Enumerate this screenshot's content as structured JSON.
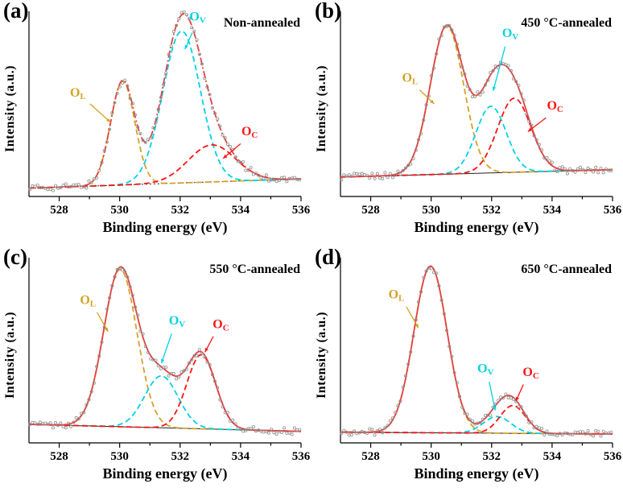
{
  "figure": {
    "background": "#ffffff",
    "axis_color": "#000000"
  },
  "chart_data": [
    {
      "type": "line",
      "panel_label": "(a)",
      "title": "Non-annealed",
      "xlabel": "Binding energy (eV)",
      "ylabel": "Intensity (a.u.)",
      "xlim": [
        527,
        536
      ],
      "ylim": [
        0,
        1
      ],
      "x_ticks": [
        528,
        530,
        532,
        534,
        536
      ],
      "raw": {
        "name": "raw data",
        "color": "#8f8f8f",
        "style": "scatter-open-circle"
      },
      "envelope": {
        "name": "fit envelope",
        "color": "#e4413f",
        "style": "dashdot"
      },
      "baseline": {
        "name": "background",
        "color": "#222222",
        "style": "dotted",
        "left": 0.045,
        "right": 0.095
      },
      "peaks": [
        {
          "name": "O_L",
          "text": "O",
          "sub": "L",
          "color": "#d6a125",
          "center": 530.1,
          "amplitude": 0.56,
          "sigma": 0.4,
          "label": {
            "x": 528.62,
            "y": 0.54
          },
          "arrow": {
            "x1": 529.02,
            "y1": 0.5,
            "x2": 529.7,
            "y2": 0.4
          }
        },
        {
          "name": "O_V",
          "text": "O",
          "sub": "V",
          "color": "#00d2e6",
          "center": 532.05,
          "amplitude": 0.82,
          "sigma": 0.62,
          "label": {
            "x": 532.58,
            "y": 0.95
          },
          "arrow": {
            "x1": 532.4,
            "y1": 0.885,
            "x2": 532.16,
            "y2": 0.795
          }
        },
        {
          "name": "O_C",
          "text": "O",
          "sub": "C",
          "color": "#fa1414",
          "center": 533.05,
          "amplitude": 0.2,
          "sigma": 0.78,
          "label": {
            "x": 534.3,
            "y": 0.33
          },
          "arrow": {
            "x1": 534.0,
            "y1": 0.285,
            "x2": 533.42,
            "y2": 0.205
          }
        }
      ]
    },
    {
      "type": "line",
      "panel_label": "(b)",
      "title": "450 °C-annealed",
      "xlabel": "Binding energy (eV)",
      "ylabel": "Intensity (a.u.)",
      "xlim": [
        527,
        536
      ],
      "ylim": [
        0,
        1
      ],
      "x_ticks": [
        528,
        530,
        532,
        534,
        536
      ],
      "raw": {
        "name": "raw data",
        "color": "#8f8f8f",
        "style": "scatter-open-circle"
      },
      "envelope": {
        "name": "fit envelope",
        "color": "#e4413f",
        "style": "solid"
      },
      "baseline": {
        "name": "background",
        "color": "#222222",
        "style": "solid",
        "left": 0.105,
        "right": 0.145
      },
      "peaks": [
        {
          "name": "O_L",
          "text": "O",
          "sub": "L",
          "color": "#d6a125",
          "center": 530.52,
          "amplitude": 0.8,
          "sigma": 0.55,
          "label": {
            "x": 529.3,
            "y": 0.62
          },
          "arrow": {
            "x1": 529.62,
            "y1": 0.575,
            "x2": 530.1,
            "y2": 0.5
          }
        },
        {
          "name": "O_V",
          "text": "O",
          "sub": "V",
          "color": "#00d2e6",
          "center": 531.98,
          "amplitude": 0.36,
          "sigma": 0.5,
          "label": {
            "x": 532.62,
            "y": 0.86
          },
          "arrow": {
            "x1": 532.45,
            "y1": 0.81,
            "x2": 532.05,
            "y2": 0.57
          }
        },
        {
          "name": "O_C",
          "text": "O",
          "sub": "C",
          "color": "#fa1414",
          "center": 532.75,
          "amplitude": 0.4,
          "sigma": 0.55,
          "label": {
            "x": 534.1,
            "y": 0.47
          },
          "arrow": {
            "x1": 533.8,
            "y1": 0.425,
            "x2": 533.2,
            "y2": 0.35
          }
        }
      ]
    },
    {
      "type": "line",
      "panel_label": "(c)",
      "title": "550 °C-annealed",
      "xlabel": "Binding energy (eV)",
      "ylabel": "Intensity (a.u.)",
      "xlim": [
        527,
        536
      ],
      "ylim": [
        0,
        1
      ],
      "x_ticks": [
        528,
        530,
        532,
        534,
        536
      ],
      "raw": {
        "name": "raw data",
        "color": "#8f8f8f",
        "style": "scatter-open-circle"
      },
      "envelope": {
        "name": "fit envelope",
        "color": "#e4413f",
        "style": "solid"
      },
      "baseline": {
        "name": "background",
        "color": "#222222",
        "style": "solid",
        "left": 0.1,
        "right": 0.062
      },
      "peaks": [
        {
          "name": "O_L",
          "text": "O",
          "sub": "L",
          "color": "#d6a125",
          "center": 530.02,
          "amplitude": 0.85,
          "sigma": 0.55,
          "label": {
            "x": 528.95,
            "y": 0.75
          },
          "arrow": {
            "x1": 529.25,
            "y1": 0.705,
            "x2": 529.62,
            "y2": 0.6
          }
        },
        {
          "name": "O_V",
          "text": "O",
          "sub": "V",
          "color": "#00d2e6",
          "center": 531.38,
          "amplitude": 0.28,
          "sigma": 0.55,
          "label": {
            "x": 531.9,
            "y": 0.64
          },
          "arrow": {
            "x1": 531.72,
            "y1": 0.59,
            "x2": 531.38,
            "y2": 0.43
          }
        },
        {
          "name": "O_C",
          "text": "O",
          "sub": "C",
          "color": "#fa1414",
          "center": 532.7,
          "amplitude": 0.4,
          "sigma": 0.48,
          "label": {
            "x": 533.35,
            "y": 0.62
          },
          "arrow": {
            "x1": 533.1,
            "y1": 0.575,
            "x2": 532.82,
            "y2": 0.49
          }
        }
      ]
    },
    {
      "type": "line",
      "panel_label": "(d)",
      "title": "650 °C-annealed",
      "xlabel": "Binding energy (eV)",
      "ylabel": "Intensity (a.u.)",
      "xlim": [
        527,
        536
      ],
      "ylim": [
        0,
        1
      ],
      "x_ticks": [
        528,
        530,
        532,
        534,
        536
      ],
      "raw": {
        "name": "raw data",
        "color": "#8f8f8f",
        "style": "scatter-open-circle"
      },
      "envelope": {
        "name": "fit envelope",
        "color": "#e4413f",
        "style": "solid"
      },
      "baseline": {
        "name": "background",
        "color": "#222222",
        "style": "solid",
        "left": 0.058,
        "right": 0.048
      },
      "peaks": [
        {
          "name": "O_L",
          "text": "O",
          "sub": "L",
          "color": "#d6a125",
          "center": 529.98,
          "amplitude": 0.9,
          "sigma": 0.55,
          "label": {
            "x": 528.85,
            "y": 0.78
          },
          "arrow": {
            "x1": 529.18,
            "y1": 0.735,
            "x2": 529.58,
            "y2": 0.62
          }
        },
        {
          "name": "O_V",
          "text": "O",
          "sub": "V",
          "color": "#00d2e6",
          "center": 532.18,
          "amplitude": 0.09,
          "sigma": 0.45,
          "label": {
            "x": 531.8,
            "y": 0.38
          },
          "arrow": {
            "x1": 531.92,
            "y1": 0.33,
            "x2": 532.12,
            "y2": 0.175
          }
        },
        {
          "name": "O_C",
          "text": "O",
          "sub": "C",
          "color": "#fa1414",
          "center": 532.7,
          "amplitude": 0.15,
          "sigma": 0.42,
          "label": {
            "x": 533.3,
            "y": 0.36
          },
          "arrow": {
            "x1": 533.05,
            "y1": 0.315,
            "x2": 532.8,
            "y2": 0.225
          }
        }
      ]
    }
  ]
}
